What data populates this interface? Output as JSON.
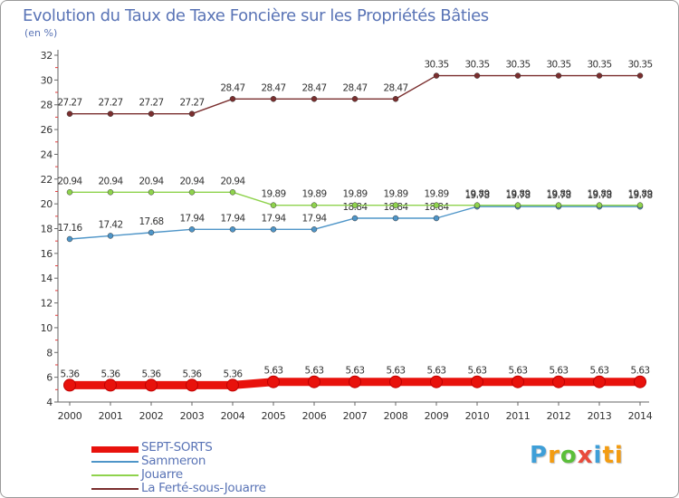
{
  "chart_data": {
    "type": "line",
    "title": "Evolution du Taux de Taxe Foncière sur les Propriétés Bâties",
    "ylabel": "(en %)",
    "xlabel": "",
    "ylim": [
      4,
      32
    ],
    "y_ticks": [
      "4",
      "6",
      "8",
      "10",
      "12",
      "14",
      "16",
      "18",
      "20",
      "22",
      "24",
      "26",
      "28",
      "30",
      "32"
    ],
    "categories": [
      "2000",
      "2001",
      "2002",
      "2003",
      "2004",
      "2005",
      "2006",
      "2007",
      "2008",
      "2009",
      "2010",
      "2011",
      "2012",
      "2013",
      "2014"
    ],
    "grid": false,
    "series": [
      {
        "name": "SEPT-SORTS",
        "color": "#e8120c",
        "values": [
          5.36,
          5.36,
          5.36,
          5.36,
          5.36,
          5.63,
          5.63,
          5.63,
          5.63,
          5.63,
          5.63,
          5.63,
          5.63,
          5.63,
          5.63
        ],
        "labels": [
          "5.36",
          "5.36",
          "5.36",
          "5.36",
          "5.36",
          "5.63",
          "5.63",
          "5.63",
          "5.63",
          "5.63",
          "5.63",
          "5.63",
          "5.63",
          "5.63",
          "5.63"
        ]
      },
      {
        "name": "Sammeron",
        "color": "#4e95c8",
        "values": [
          17.16,
          17.42,
          17.68,
          17.94,
          17.94,
          17.94,
          17.94,
          18.84,
          18.84,
          18.84,
          19.78,
          19.78,
          19.78,
          19.78,
          19.78
        ],
        "labels": [
          "17.16",
          "17.42",
          "17.68",
          "17.94",
          "17.94",
          "17.94",
          "17.94",
          "18.84",
          "18.84",
          "18.84",
          "19.78",
          "19.78",
          "19.78",
          "19.78",
          "19.78"
        ]
      },
      {
        "name": "Jouarre",
        "color": "#8fd34d",
        "values": [
          20.94,
          20.94,
          20.94,
          20.94,
          20.94,
          19.89,
          19.89,
          19.89,
          19.89,
          19.89,
          19.89,
          19.89,
          19.89,
          19.89,
          19.89
        ],
        "labels": [
          "20.94",
          "20.94",
          "20.94",
          "20.94",
          "20.94",
          "19.89",
          "19.89",
          "19.89",
          "19.89",
          "19.89",
          "19.89",
          "19.89",
          "19.89",
          "19.89",
          "19.89"
        ]
      },
      {
        "name": "La Ferté-sous-Jouarre",
        "color": "#7a2e2e",
        "values": [
          27.27,
          27.27,
          27.27,
          27.27,
          28.47,
          28.47,
          28.47,
          28.47,
          28.47,
          30.35,
          30.35,
          30.35,
          30.35,
          30.35,
          30.35
        ],
        "labels": [
          "27.27",
          "27.27",
          "27.27",
          "27.27",
          "28.47",
          "28.47",
          "28.47",
          "28.47",
          "28.47",
          "30.35",
          "30.35",
          "30.35",
          "30.35",
          "30.35",
          "30.35"
        ]
      }
    ],
    "legend": {
      "position": "bottom-left"
    }
  },
  "logo": {
    "parts": [
      "P",
      "r",
      "o",
      "x",
      "i",
      "ti"
    ]
  }
}
